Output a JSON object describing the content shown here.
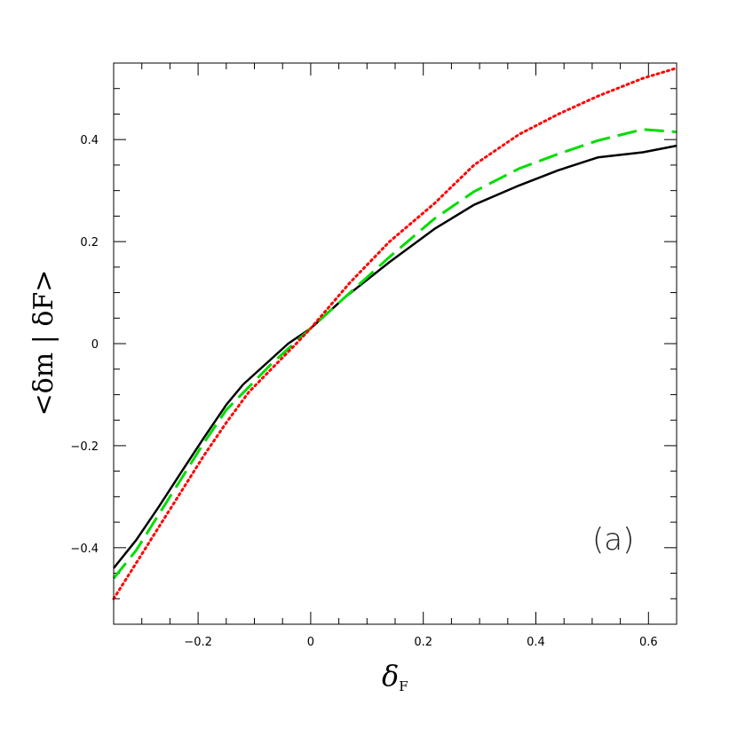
{
  "chart_data": {
    "type": "line",
    "title": "",
    "xlabel": {
      "symbol": "δ",
      "subscript": "F"
    },
    "ylabel": {
      "text": "<δm | δF>"
    },
    "panel_label": "(a)",
    "xlim": [
      -0.35,
      0.65
    ],
    "ylim": [
      -0.55,
      0.55
    ],
    "x_ticks": [
      -0.2,
      0,
      0.2,
      0.4,
      0.6
    ],
    "x_tick_labels": [
      "−0.2",
      "0",
      "0.2",
      "0.4",
      "0.6"
    ],
    "y_ticks": [
      -0.4,
      -0.2,
      0,
      0.2,
      0.4
    ],
    "y_tick_labels": [
      "−0.4",
      "−0.2",
      "0",
      "0.2",
      "0.4"
    ],
    "x_minor_step": 0.05,
    "y_minor_step": 0.05,
    "grid": false,
    "legend": "none",
    "series": [
      {
        "color": "#000000",
        "style": "solid",
        "x": [
          -0.35,
          -0.31,
          -0.27,
          -0.23,
          -0.19,
          -0.15,
          -0.12,
          -0.08,
          -0.04,
          0.0,
          0.06,
          0.14,
          0.22,
          0.29,
          0.37,
          0.44,
          0.51,
          0.59,
          0.65
        ],
        "y": [
          -0.44,
          -0.385,
          -0.32,
          -0.252,
          -0.185,
          -0.12,
          -0.08,
          -0.04,
          0.0,
          0.03,
          0.09,
          0.16,
          0.225,
          0.272,
          0.31,
          0.34,
          0.365,
          0.375,
          0.388
        ]
      },
      {
        "color": "#00dd00",
        "style": "dashed",
        "x": [
          -0.35,
          -0.31,
          -0.27,
          -0.23,
          -0.19,
          -0.15,
          -0.11,
          -0.07,
          -0.03,
          0.0,
          0.07,
          0.14,
          0.22,
          0.29,
          0.37,
          0.44,
          0.51,
          0.59,
          0.65
        ],
        "y": [
          -0.46,
          -0.405,
          -0.335,
          -0.265,
          -0.195,
          -0.13,
          -0.085,
          -0.04,
          0.0,
          0.03,
          0.1,
          0.17,
          0.245,
          0.298,
          0.343,
          0.372,
          0.398,
          0.42,
          0.415
        ]
      },
      {
        "color": "#ff0000",
        "style": "dotted",
        "x": [
          -0.35,
          -0.31,
          -0.27,
          -0.23,
          -0.19,
          -0.15,
          -0.11,
          -0.07,
          -0.03,
          0.0,
          0.07,
          0.14,
          0.22,
          0.29,
          0.37,
          0.44,
          0.51,
          0.59,
          0.65
        ],
        "y": [
          -0.5,
          -0.43,
          -0.36,
          -0.29,
          -0.22,
          -0.155,
          -0.095,
          -0.05,
          -0.005,
          0.03,
          0.12,
          0.2,
          0.275,
          0.35,
          0.41,
          0.45,
          0.485,
          0.52,
          0.54
        ]
      }
    ]
  }
}
